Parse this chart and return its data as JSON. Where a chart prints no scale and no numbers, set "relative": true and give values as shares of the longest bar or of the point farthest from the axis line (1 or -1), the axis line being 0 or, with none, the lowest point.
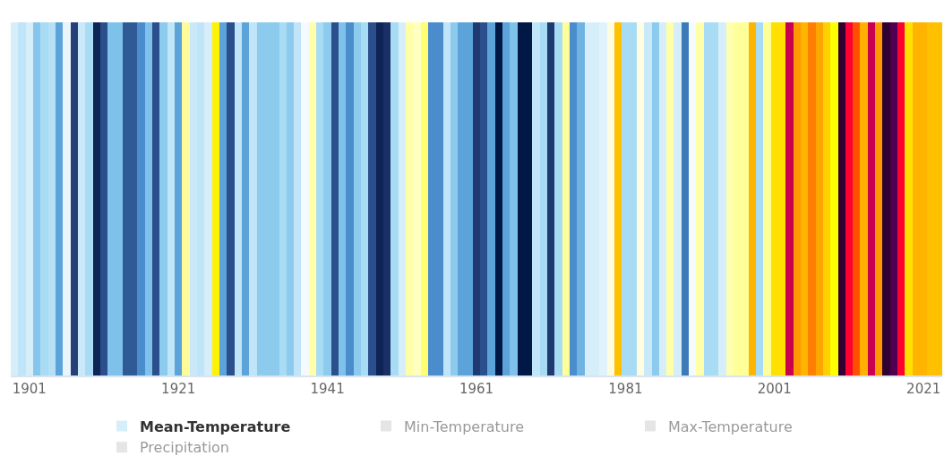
{
  "chart_data": {
    "type": "bar",
    "relative": true,
    "x": [
      1899,
      1900,
      1901,
      1902,
      1903,
      1904,
      1905,
      1906,
      1907,
      1908,
      1909,
      1910,
      1911,
      1912,
      1913,
      1914,
      1915,
      1916,
      1917,
      1918,
      1919,
      1920,
      1921,
      1922,
      1923,
      1924,
      1925,
      1926,
      1927,
      1928,
      1929,
      1930,
      1931,
      1932,
      1933,
      1934,
      1935,
      1936,
      1937,
      1938,
      1939,
      1940,
      1941,
      1942,
      1943,
      1944,
      1945,
      1946,
      1947,
      1948,
      1949,
      1950,
      1951,
      1952,
      1953,
      1954,
      1955,
      1956,
      1957,
      1958,
      1959,
      1960,
      1961,
      1962,
      1963,
      1964,
      1965,
      1966,
      1967,
      1968,
      1969,
      1970,
      1971,
      1972,
      1973,
      1974,
      1975,
      1976,
      1977,
      1978,
      1979,
      1980,
      1981,
      1982,
      1983,
      1984,
      1985,
      1986,
      1987,
      1988,
      1989,
      1990,
      1991,
      1992,
      1993,
      1994,
      1995,
      1996,
      1997,
      1998,
      1999,
      2000,
      2001,
      2002,
      2003,
      2004,
      2005,
      2006,
      2007,
      2008,
      2009,
      2010,
      2011,
      2012,
      2013,
      2014,
      2015,
      2016,
      2017,
      2018,
      2019,
      2020,
      2021,
      2022,
      2023
    ],
    "xlim": [
      1898.5,
      2023.5
    ],
    "xticks": [
      1901,
      1921,
      1941,
      1961,
      1981,
      2001,
      2021
    ],
    "legend": "bottom",
    "series": [
      {
        "name": "Mean-Temperature",
        "color": "#ffa500",
        "values": [
          1,
          1,
          1,
          1,
          1,
          1,
          1,
          1,
          1,
          1,
          1,
          1,
          1,
          1,
          1,
          1,
          1,
          1,
          1,
          1,
          1,
          1,
          1,
          1,
          1,
          1,
          1,
          1,
          1,
          1,
          1,
          1,
          1,
          1,
          1,
          1,
          1,
          1,
          1,
          1,
          1,
          1,
          1,
          1,
          1,
          1,
          1,
          1,
          1,
          1,
          1,
          1,
          1,
          1,
          1,
          1,
          1,
          1,
          1,
          1,
          1,
          1,
          1,
          1,
          1,
          1,
          1,
          1,
          1,
          1,
          1,
          1,
          1,
          1,
          1,
          1,
          1,
          1,
          1,
          1,
          1,
          1,
          1,
          1,
          1,
          1,
          1,
          1,
          1,
          1,
          1,
          1,
          1,
          1,
          1,
          1,
          1,
          1,
          1,
          1,
          1,
          1,
          1,
          1,
          1,
          1,
          1,
          1,
          1,
          1,
          1,
          1,
          1,
          1,
          1,
          1,
          1,
          1,
          1,
          1,
          1,
          1,
          1,
          1,
          1
        ],
        "colors": [
          "#d6eefa",
          "#c0e4f8",
          "#d6eefa",
          "#87c6ec",
          "#a8dcf5",
          "#b5e0f5",
          "#5ba3d9",
          "#e8f5fc",
          "#253f78",
          "#c9e8f8",
          "#a8dcf5",
          "#0e2356",
          "#2b4e8c",
          "#7ec1ea",
          "#7ec1ea",
          "#2f5a96",
          "#2f5a96",
          "#4a8ccc",
          "#7ec1ea",
          "#2b4e8c",
          "#8ccbee",
          "#c0e4f8",
          "#5ba3d9",
          "#fffb9a",
          "#c9e8f8",
          "#c0e4f8",
          "#d6eefa",
          "#fff200",
          "#5ba3d9",
          "#2b4e8c",
          "#c0e4f8",
          "#5ba3d9",
          "#c0e4f8",
          "#8ccbee",
          "#8ccbee",
          "#8ccbee",
          "#a8dcf5",
          "#8ccbee",
          "#c0e4f8",
          "#f5faff",
          "#ffffa8",
          "#a8dcf5",
          "#8ccbee",
          "#2b4e8c",
          "#7ec1ea",
          "#4a8ccc",
          "#8ccbee",
          "#a8dcf5",
          "#2b4e8c",
          "#0e2356",
          "#1a2f66",
          "#a8dcf5",
          "#d6eefa",
          "#ffffa8",
          "#ffffc0",
          "#ffff70",
          "#4a8ccc",
          "#4a8ccc",
          "#c0e4f8",
          "#8ccbee",
          "#5ba3d9",
          "#5ba3d9",
          "#1f3a70",
          "#2b4e8c",
          "#5ba3d9",
          "#001845",
          "#5ba3d9",
          "#7ec1ea",
          "#001845",
          "#001845",
          "#c0e4f8",
          "#a8dcf5",
          "#1f3a70",
          "#a8dcf5",
          "#ffff99",
          "#4a8ccc",
          "#6fb3e3",
          "#d6eefa",
          "#d6eefa",
          "#e0f3fc",
          "#fffde0",
          "#ffc000",
          "#a8dcf5",
          "#a8dcf5",
          "#fffde0",
          "#c9e8f8",
          "#8ccbee",
          "#d6eefa",
          "#ffffa8",
          "#d6eefa",
          "#3d7ab8",
          "#f5faff",
          "#ffffa8",
          "#a8dcf5",
          "#a8dcf5",
          "#d6eefa",
          "#ffffb0",
          "#ffff99",
          "#ffff99",
          "#ffb400",
          "#a8dcf5",
          "#ffff99",
          "#ffe000",
          "#ffe000",
          "#c8004f",
          "#ff9900",
          "#ffb400",
          "#ff7f00",
          "#ffa500",
          "#ffd000",
          "#ffff00",
          "#300030",
          "#ff0030",
          "#ff4f00",
          "#ffb000",
          "#c8004f",
          "#ff9900",
          "#300030",
          "#500050",
          "#ff0030",
          "#ffe000",
          "#ffb400",
          "#ffb400",
          "#ffc000",
          "#ffc000"
        ]
      },
      {
        "name": "Min-Temperature",
        "color": "#cccccc",
        "values": [
          null,
          null,
          null,
          null,
          null,
          null,
          null,
          null,
          null,
          null,
          null,
          null,
          null,
          null,
          null,
          null,
          null,
          null,
          null,
          null,
          null,
          null,
          null,
          null,
          null,
          null,
          null,
          null,
          null,
          null,
          null,
          null,
          null,
          null,
          null,
          null,
          null,
          null,
          null,
          null,
          null,
          null,
          null,
          null,
          null,
          null,
          null,
          null,
          null,
          null,
          null,
          null,
          null,
          null,
          null,
          null,
          null,
          null,
          null,
          null,
          null,
          null,
          null,
          null,
          null,
          null,
          null,
          null,
          null,
          null,
          null,
          null,
          null,
          null,
          null,
          null,
          null,
          null,
          null,
          null,
          null,
          null,
          null,
          null,
          null,
          null,
          null,
          null,
          null,
          null,
          null,
          null,
          null,
          null,
          null,
          null,
          null,
          null,
          null,
          null,
          null,
          null,
          null,
          null,
          null,
          null,
          null,
          null,
          null,
          null,
          null,
          null,
          null,
          null,
          null,
          null,
          null,
          null,
          null,
          null,
          null,
          null,
          null,
          null,
          null
        ]
      },
      {
        "name": "Max-Temperature",
        "color": "#cccccc",
        "values": [
          null,
          null,
          null,
          null,
          null,
          null,
          null,
          null,
          null,
          null,
          null,
          null,
          null,
          null,
          null,
          null,
          null,
          null,
          null,
          null,
          null,
          null,
          null,
          null,
          null,
          null,
          null,
          null,
          null,
          null,
          null,
          null,
          null,
          null,
          null,
          null,
          null,
          null,
          null,
          null,
          null,
          null,
          null,
          null,
          null,
          null,
          null,
          null,
          null,
          null,
          null,
          null,
          null,
          null,
          null,
          null,
          null,
          null,
          null,
          null,
          null,
          null,
          null,
          null,
          null,
          null,
          null,
          null,
          null,
          null,
          null,
          null,
          null,
          null,
          null,
          null,
          null,
          null,
          null,
          null,
          null,
          null,
          null,
          null,
          null,
          null,
          null,
          null,
          null,
          null,
          null,
          null,
          null,
          null,
          null,
          null,
          null,
          null,
          null,
          null,
          null,
          null,
          null,
          null,
          null,
          null,
          null,
          null,
          null,
          null,
          null,
          null,
          null,
          null,
          null,
          null,
          null,
          null,
          null,
          null,
          null,
          null,
          null,
          null,
          null
        ]
      },
      {
        "name": "Precipitation",
        "color": "#cccccc",
        "values": [
          null,
          null,
          null,
          null,
          null,
          null,
          null,
          null,
          null,
          null,
          null,
          null,
          null,
          null,
          null,
          null,
          null,
          null,
          null,
          null,
          null,
          null,
          null,
          null,
          null,
          null,
          null,
          null,
          null,
          null,
          null,
          null,
          null,
          null,
          null,
          null,
          null,
          null,
          null,
          null,
          null,
          null,
          null,
          null,
          null,
          null,
          null,
          null,
          null,
          null,
          null,
          null,
          null,
          null,
          null,
          null,
          null,
          null,
          null,
          null,
          null,
          null,
          null,
          null,
          null,
          null,
          null,
          null,
          null,
          null,
          null,
          null,
          null,
          null,
          null,
          null,
          null,
          null,
          null,
          null,
          null,
          null,
          null,
          null,
          null,
          null,
          null,
          null,
          null,
          null,
          null,
          null,
          null,
          null,
          null,
          null,
          null,
          null,
          null,
          null,
          null,
          null,
          null,
          null,
          null,
          null,
          null,
          null,
          null,
          null,
          null,
          null,
          null,
          null,
          null,
          null,
          null,
          null,
          null,
          null,
          null,
          null,
          null,
          null,
          null
        ]
      }
    ]
  }
}
